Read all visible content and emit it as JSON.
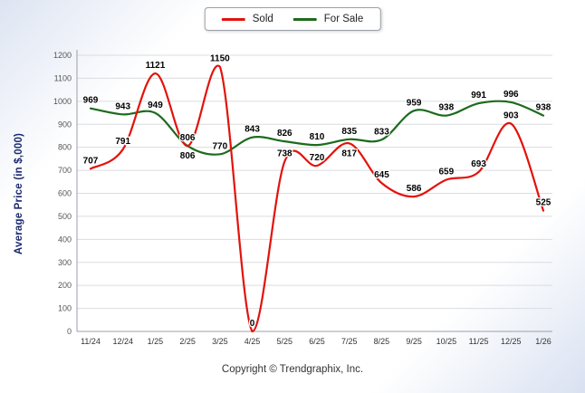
{
  "legend": {
    "items": [
      {
        "label": "Sold",
        "color": "#e3120b"
      },
      {
        "label": "For Sale",
        "color": "#1c6b1c"
      }
    ]
  },
  "axis": {
    "ylabel": "Average Price (in $,000)"
  },
  "footer": {
    "text": "Copyright © Trendgraphix, Inc."
  },
  "chart_data": {
    "type": "line",
    "title": "",
    "xlabel": "",
    "ylabel": "Average Price (in $,000)",
    "categories": [
      "11/24",
      "12/24",
      "1/25",
      "2/25",
      "3/25",
      "4/25",
      "5/25",
      "6/25",
      "7/25",
      "8/25",
      "9/25",
      "10/25",
      "11/25",
      "12/25",
      "1/26"
    ],
    "series": [
      {
        "name": "Sold",
        "color": "#e3120b",
        "values": [
          707,
          791,
          1121,
          806,
          1150,
          0,
          738,
          720,
          817,
          645,
          586,
          659,
          693,
          903,
          525
        ]
      },
      {
        "name": "For Sale",
        "color": "#1c6b1c",
        "values": [
          969,
          943,
          949,
          806,
          770,
          843,
          826,
          810,
          835,
          833,
          959,
          938,
          991,
          996,
          938
        ]
      }
    ],
    "ylim": [
      0,
      1200
    ],
    "ytick_step": 100,
    "grid": true,
    "legend_position": "top-center",
    "show_point_labels": true
  }
}
